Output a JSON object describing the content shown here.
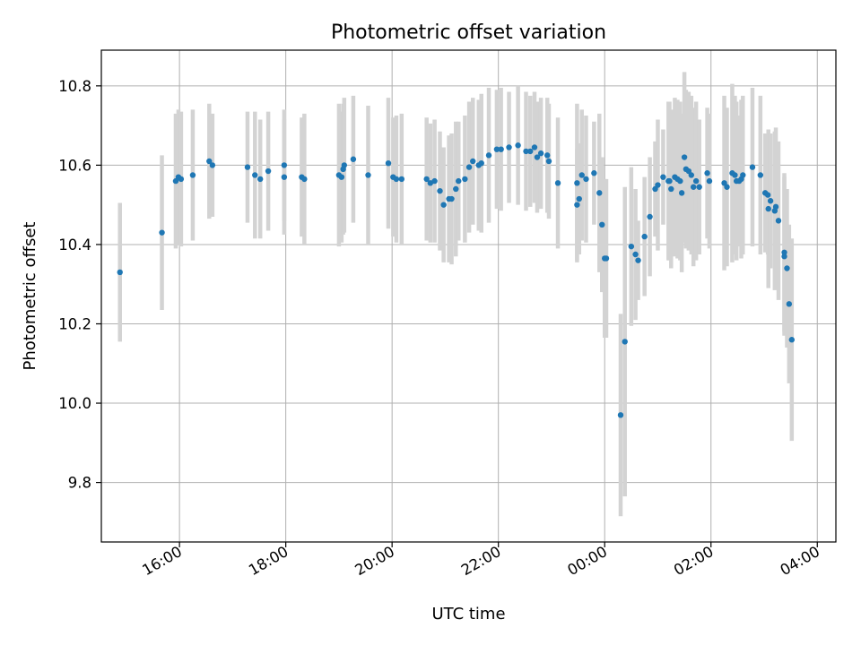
{
  "chart_data": {
    "type": "scatter",
    "title": "Photometric offset variation",
    "xlabel": "UTC time",
    "ylabel": "Photometric offset",
    "x_unit": "hours",
    "xlim": [
      14.53,
      28.35
    ],
    "ylim": [
      9.65,
      10.89
    ],
    "xticks": [
      {
        "value": 16,
        "label": "16:00"
      },
      {
        "value": 18,
        "label": "18:00"
      },
      {
        "value": 20,
        "label": "20:00"
      },
      {
        "value": 22,
        "label": "22:00"
      },
      {
        "value": 24,
        "label": "00:00"
      },
      {
        "value": 26,
        "label": "02:00"
      },
      {
        "value": 28,
        "label": "04:00"
      }
    ],
    "yticks": [
      {
        "value": 9.8,
        "label": "9.8"
      },
      {
        "value": 10.0,
        "label": "10.0"
      },
      {
        "value": 10.2,
        "label": "10.2"
      },
      {
        "value": 10.4,
        "label": "10.4"
      },
      {
        "value": 10.6,
        "label": "10.6"
      },
      {
        "value": 10.8,
        "label": "10.8"
      }
    ],
    "grid": true,
    "legend": "none",
    "colors": {
      "marker": "#1f77b4",
      "errorbar": "#d3d3d3",
      "grid": "#b0b0b0"
    },
    "series": [
      {
        "points": [
          [
            14.88,
            10.33,
            0.175
          ],
          [
            15.67,
            10.43,
            0.195
          ],
          [
            15.93,
            10.56,
            0.17
          ],
          [
            15.98,
            10.57,
            0.17
          ],
          [
            16.03,
            10.565,
            0.17
          ],
          [
            16.25,
            10.575,
            0.165
          ],
          [
            16.56,
            10.61,
            0.145
          ],
          [
            16.62,
            10.6,
            0.13
          ],
          [
            17.28,
            10.595,
            0.14
          ],
          [
            17.42,
            10.575,
            0.16
          ],
          [
            17.52,
            10.565,
            0.15
          ],
          [
            17.67,
            10.585,
            0.15
          ],
          [
            17.97,
            10.6,
            0.14
          ],
          [
            17.97,
            10.57,
            0.145
          ],
          [
            18.3,
            10.57,
            0.15
          ],
          [
            18.35,
            10.565,
            0.165
          ],
          [
            19.0,
            10.575,
            0.18
          ],
          [
            19.05,
            10.57,
            0.165
          ],
          [
            19.08,
            10.59,
            0.165
          ],
          [
            19.1,
            10.6,
            0.17
          ],
          [
            19.27,
            10.615,
            0.16
          ],
          [
            19.55,
            10.575,
            0.175
          ],
          [
            19.93,
            10.605,
            0.165
          ],
          [
            20.02,
            10.57,
            0.15
          ],
          [
            20.08,
            10.565,
            0.16
          ],
          [
            20.18,
            10.565,
            0.165
          ],
          [
            20.65,
            10.565,
            0.155
          ],
          [
            20.72,
            10.555,
            0.15
          ],
          [
            20.8,
            10.56,
            0.155
          ],
          [
            20.9,
            10.535,
            0.15
          ],
          [
            20.97,
            10.5,
            0.145
          ],
          [
            21.07,
            10.515,
            0.16
          ],
          [
            21.12,
            10.515,
            0.165
          ],
          [
            21.2,
            10.54,
            0.17
          ],
          [
            21.25,
            10.56,
            0.15
          ],
          [
            21.37,
            10.565,
            0.16
          ],
          [
            21.45,
            10.595,
            0.165
          ],
          [
            21.52,
            10.61,
            0.16
          ],
          [
            21.63,
            10.6,
            0.165
          ],
          [
            21.68,
            10.605,
            0.175
          ],
          [
            21.82,
            10.625,
            0.17
          ],
          [
            21.97,
            10.64,
            0.15
          ],
          [
            22.05,
            10.64,
            0.155
          ],
          [
            22.2,
            10.645,
            0.14
          ],
          [
            22.37,
            10.65,
            0.15
          ],
          [
            22.52,
            10.635,
            0.15
          ],
          [
            22.6,
            10.635,
            0.14
          ],
          [
            22.68,
            10.645,
            0.14
          ],
          [
            22.73,
            10.62,
            0.14
          ],
          [
            22.8,
            10.63,
            0.14
          ],
          [
            22.92,
            10.625,
            0.145
          ],
          [
            22.95,
            10.61,
            0.145
          ],
          [
            23.12,
            10.555,
            0.165
          ],
          [
            23.48,
            10.555,
            0.2
          ],
          [
            23.48,
            10.5,
            0.14
          ],
          [
            23.52,
            10.515,
            0.14
          ],
          [
            23.57,
            10.575,
            0.165
          ],
          [
            23.65,
            10.565,
            0.16
          ],
          [
            23.8,
            10.58,
            0.13
          ],
          [
            23.9,
            10.53,
            0.2
          ],
          [
            23.95,
            10.45,
            0.17
          ],
          [
            24.0,
            10.365,
            0.2
          ],
          [
            24.03,
            10.365,
            0.2
          ],
          [
            24.3,
            9.97,
            0.255
          ],
          [
            24.38,
            10.155,
            0.39
          ],
          [
            24.5,
            10.395,
            0.2
          ],
          [
            24.58,
            10.375,
            0.165
          ],
          [
            24.63,
            10.36,
            0.1
          ],
          [
            24.75,
            10.42,
            0.15
          ],
          [
            24.85,
            10.47,
            0.15
          ],
          [
            24.95,
            10.54,
            0.12
          ],
          [
            25.0,
            10.55,
            0.165
          ],
          [
            25.1,
            10.57,
            0.12
          ],
          [
            25.2,
            10.56,
            0.2
          ],
          [
            25.22,
            10.56,
            0.2
          ],
          [
            25.25,
            10.54,
            0.2
          ],
          [
            25.32,
            10.57,
            0.2
          ],
          [
            25.37,
            10.565,
            0.2
          ],
          [
            25.42,
            10.56,
            0.2
          ],
          [
            25.45,
            10.53,
            0.2
          ],
          [
            25.5,
            10.62,
            0.215
          ],
          [
            25.53,
            10.59,
            0.2
          ],
          [
            25.58,
            10.585,
            0.2
          ],
          [
            25.63,
            10.575,
            0.2
          ],
          [
            25.67,
            10.545,
            0.2
          ],
          [
            25.72,
            10.56,
            0.2
          ],
          [
            25.78,
            10.545,
            0.17
          ],
          [
            25.93,
            10.58,
            0.165
          ],
          [
            25.97,
            10.56,
            0.17
          ],
          [
            26.25,
            10.555,
            0.22
          ],
          [
            26.3,
            10.545,
            0.2
          ],
          [
            26.4,
            10.58,
            0.225
          ],
          [
            26.45,
            10.575,
            0.2
          ],
          [
            26.48,
            10.56,
            0.2
          ],
          [
            26.53,
            10.56,
            0.165
          ],
          [
            26.57,
            10.565,
            0.2
          ],
          [
            26.6,
            10.575,
            0.2
          ],
          [
            26.78,
            10.595,
            0.2
          ],
          [
            26.93,
            10.575,
            0.2
          ],
          [
            27.02,
            10.53,
            0.15
          ],
          [
            27.07,
            10.525,
            0.15
          ],
          [
            27.08,
            10.49,
            0.2
          ],
          [
            27.12,
            10.51,
            0.17
          ],
          [
            27.2,
            10.485,
            0.2
          ],
          [
            27.22,
            10.495,
            0.2
          ],
          [
            27.27,
            10.46,
            0.2
          ],
          [
            27.38,
            10.38,
            0.2
          ],
          [
            27.38,
            10.37,
            0.2
          ],
          [
            27.43,
            10.34,
            0.2
          ],
          [
            27.47,
            10.25,
            0.2
          ],
          [
            27.52,
            10.16,
            0.255
          ]
        ]
      }
    ]
  }
}
